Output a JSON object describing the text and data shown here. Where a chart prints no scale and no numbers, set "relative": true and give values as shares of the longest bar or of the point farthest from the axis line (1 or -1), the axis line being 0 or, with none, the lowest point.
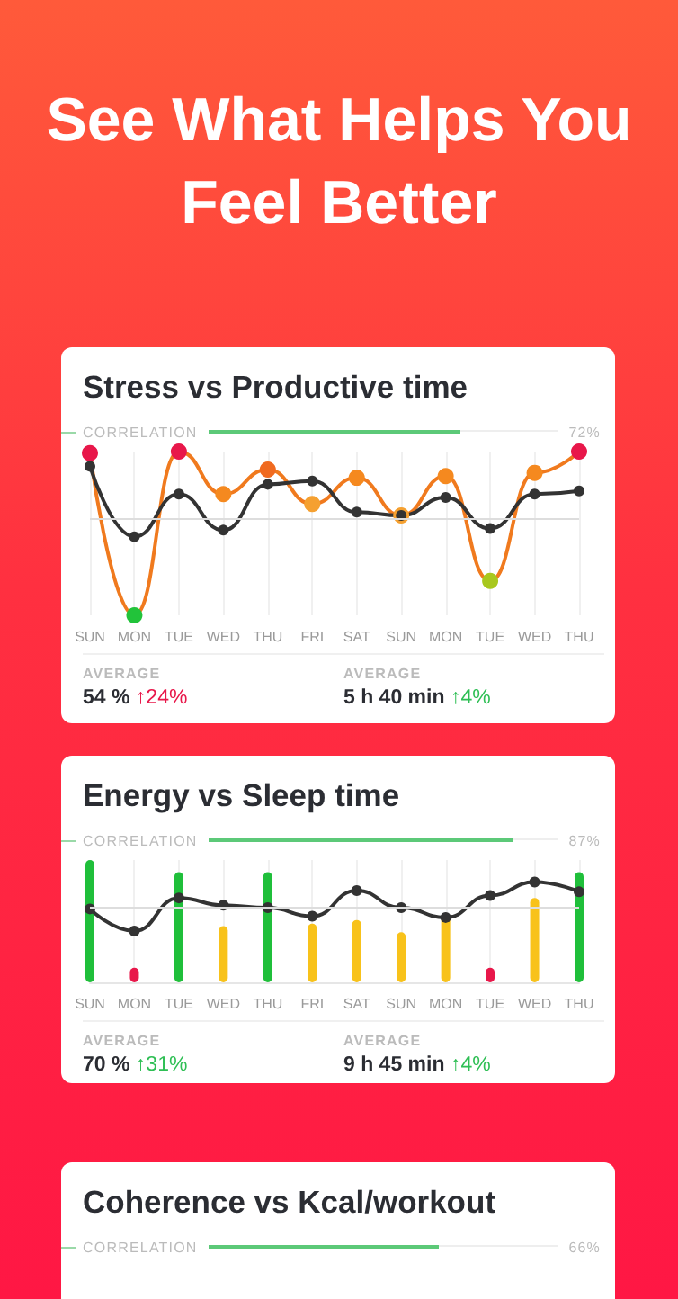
{
  "chart_data": [
    {
      "type": "other",
      "title": "See What Helps You Feel Better"
    },
    {
      "type": "line",
      "title": "Stress vs Productive time",
      "relative": true,
      "grid": "x",
      "tick_labels": "x",
      "marker": "circle",
      "categories": [
        "SUN",
        "MON",
        "TUE",
        "WED",
        "THU",
        "FRI",
        "SAT",
        "SUN",
        "MON",
        "TUE",
        "WED",
        "THU"
      ],
      "series": [
        {
          "color": "#f07a1e",
          "colors": [
            "#e8174a",
            "#22c33a",
            "#e8174a",
            "#f5891f",
            "#f06a20",
            "#f5a030",
            "#f5891f",
            "#f5a030",
            "#f5891f",
            "#a8c81e",
            "#f5891f",
            "#e8174a"
          ],
          "values": [
            0.99,
            0,
            1,
            0.74,
            0.89,
            0.68,
            0.84,
            0.61,
            0.85,
            0.21,
            0.87,
            1
          ]
        },
        {
          "color": "#333333",
          "values": [
            0.91,
            0.48,
            0.74,
            0.52,
            0.8,
            0.82,
            0.63,
            0.61,
            0.72,
            0.53,
            0.74,
            0.76
          ]
        }
      ],
      "ref_lines": [
        {
          "axis": "y",
          "value": 0.59,
          "color": "#dddddd"
        }
      ],
      "annotations": [
        "CORRELATION",
        "72%",
        "AVERAGE",
        "54 %",
        "↑24%",
        "AVERAGE",
        "5 h 40 min",
        "↑4%"
      ]
    },
    {
      "type": "bar",
      "title": "Energy vs Sleep time",
      "relative": true,
      "grid": "x",
      "tick_labels": "x",
      "marker": "circle",
      "categories": [
        "SUN",
        "MON",
        "TUE",
        "WED",
        "THU",
        "FRI",
        "SAT",
        "SUN",
        "MON",
        "TUE",
        "WED",
        "THU"
      ],
      "series": [
        {
          "colors": [
            "#1fbf3a",
            "#e8174a",
            "#1fbf3a",
            "#f8c21a",
            "#1fbf3a",
            "#f8c21a",
            "#f8c21a",
            "#f8c21a",
            "#f8c21a",
            "#e8174a",
            "#f8c21a",
            "#1fbf3a"
          ],
          "values": [
            1,
            0.12,
            0.9,
            0.46,
            0.9,
            0.48,
            0.51,
            0.41,
            0.54,
            0.12,
            0.69,
            0.9
          ]
        },
        {
          "type": "line",
          "color": "#333333",
          "values": [
            0.6,
            0.42,
            0.69,
            0.63,
            0.61,
            0.54,
            0.75,
            0.61,
            0.53,
            0.71,
            0.82,
            0.74
          ]
        }
      ],
      "ref_lines": [
        {
          "axis": "y",
          "value": 0.62,
          "color": "#dddddd"
        }
      ],
      "annotations": [
        "CORRELATION",
        "87%",
        "AVERAGE",
        "70 %",
        "↑31%",
        "AVERAGE",
        "9 h 45 min",
        "↑4%"
      ]
    },
    {
      "type": "other",
      "title": "Coherence vs Kcal/workout",
      "annotations": [
        "CORRELATION",
        "66%"
      ]
    }
  ]
}
